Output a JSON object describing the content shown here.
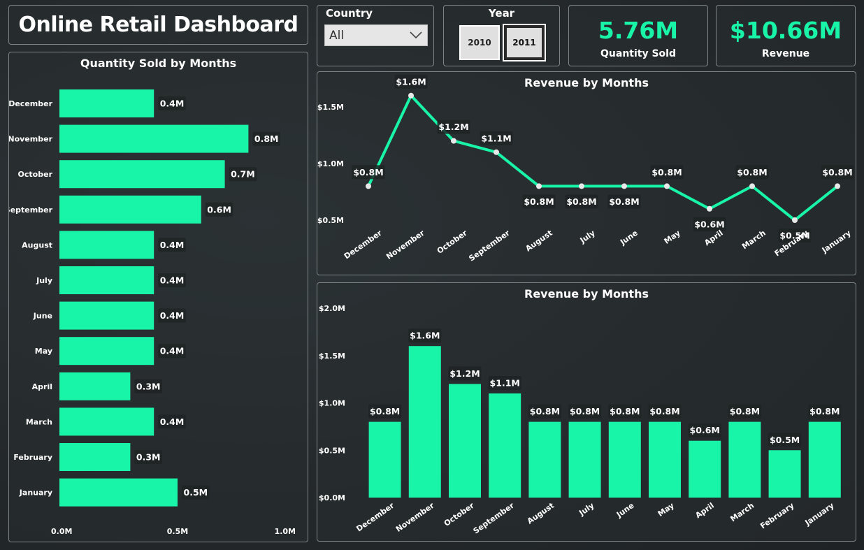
{
  "title": "Online Retail Dashboard",
  "filters": {
    "country_label": "Country",
    "country_value": "All",
    "year_label": "Year",
    "years": [
      "2010",
      "2011"
    ]
  },
  "kpis": {
    "quantity_value": "5.76M",
    "quantity_label": "Quantity Sold",
    "revenue_value": "$10.66M",
    "revenue_label": "Revenue"
  },
  "colors": {
    "accent": "#19f5a8",
    "label_bg": "#1f2325"
  },
  "chart_data": [
    {
      "type": "bar",
      "orientation": "horizontal",
      "title": "Quantity Sold by Months",
      "categories": [
        "December",
        "November",
        "October",
        "September",
        "August",
        "July",
        "June",
        "May",
        "April",
        "March",
        "February",
        "January"
      ],
      "values": [
        0.4,
        0.8,
        0.7,
        0.6,
        0.4,
        0.4,
        0.4,
        0.4,
        0.3,
        0.4,
        0.3,
        0.5
      ],
      "labels": [
        "0.4M",
        "0.8M",
        "0.7M",
        "0.6M",
        "0.4M",
        "0.4M",
        "0.4M",
        "0.4M",
        "0.3M",
        "0.4M",
        "0.3M",
        "0.5M"
      ],
      "xlim": [
        0,
        1.0
      ],
      "xticks": [
        "0.0M",
        "0.5M",
        "1.0M"
      ]
    },
    {
      "type": "line",
      "title": "Revenue by Months",
      "categories": [
        "December",
        "November",
        "October",
        "September",
        "August",
        "July",
        "June",
        "May",
        "April",
        "March",
        "February",
        "January"
      ],
      "values": [
        0.8,
        1.6,
        1.2,
        1.1,
        0.8,
        0.8,
        0.8,
        0.8,
        0.6,
        0.8,
        0.5,
        0.8
      ],
      "labels": [
        "$0.8M",
        "$1.6M",
        "$1.2M",
        "$1.1M",
        "$0.8M",
        "$0.8M",
        "$0.8M",
        "$0.8M",
        "$0.6M",
        "$0.8M",
        "$0.5M",
        "$0.8M"
      ],
      "ylim": [
        0.5,
        1.5
      ],
      "yticks": [
        "$1.5M",
        "$1.0M",
        "$0.5M"
      ]
    },
    {
      "type": "bar",
      "title": "Revenue by Months",
      "categories": [
        "December",
        "November",
        "October",
        "September",
        "August",
        "July",
        "June",
        "May",
        "April",
        "March",
        "February",
        "January"
      ],
      "values": [
        0.8,
        1.6,
        1.2,
        1.1,
        0.8,
        0.8,
        0.8,
        0.8,
        0.6,
        0.8,
        0.5,
        0.8
      ],
      "labels": [
        "$0.8M",
        "$1.6M",
        "$1.2M",
        "$1.1M",
        "$0.8M",
        "$0.8M",
        "$0.8M",
        "$0.8M",
        "$0.6M",
        "$0.8M",
        "$0.5M",
        "$0.8M"
      ],
      "ylim": [
        0,
        2.0
      ],
      "yticks": [
        "$2.0M",
        "$1.5M",
        "$1.0M",
        "$0.5M",
        "$0.0M"
      ]
    }
  ]
}
